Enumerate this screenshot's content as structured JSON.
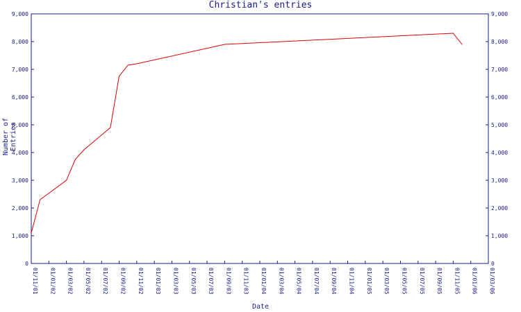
{
  "chart_data": {
    "type": "line",
    "title": "Christian's entries",
    "xlabel": "Date",
    "ylabel": "Number of Entries",
    "ylim": [
      0,
      9000
    ],
    "y_ticks": [
      "0",
      "1,000",
      "2,000",
      "3,000",
      "4,000",
      "5,000",
      "6,000",
      "7,000",
      "8,000",
      "9,000"
    ],
    "x_ticks": [
      "01/11/01",
      "01/01/02",
      "01/03/02",
      "01/05/02",
      "01/07/02",
      "01/09/02",
      "01/11/02",
      "01/01/03",
      "01/03/03",
      "01/05/03",
      "01/07/03",
      "01/09/03",
      "01/11/03",
      "01/01/04",
      "01/03/04",
      "01/05/04",
      "01/07/04",
      "01/09/04",
      "01/11/04",
      "01/01/05",
      "01/03/05",
      "01/05/05",
      "01/07/05",
      "01/09/05",
      "01/11/05",
      "01/01/06",
      "01/03/06"
    ],
    "grid": false,
    "colors": {
      "line": "#dd0000",
      "axis": "#1a1a8c",
      "text": "#1a1a8c"
    },
    "series": [
      {
        "x": [
          "01/11/01",
          "01/12/01",
          "01/03/02",
          "01/04/02",
          "01/05/02",
          "01/08/02",
          "01/09/02",
          "01/10/02",
          "01/11/02",
          "01/09/03",
          "01/11/05",
          "01/12/05"
        ],
        "values": [
          1100,
          2300,
          3000,
          3750,
          4100,
          4900,
          6750,
          7150,
          7200,
          7900,
          8300,
          7900
        ]
      }
    ]
  }
}
